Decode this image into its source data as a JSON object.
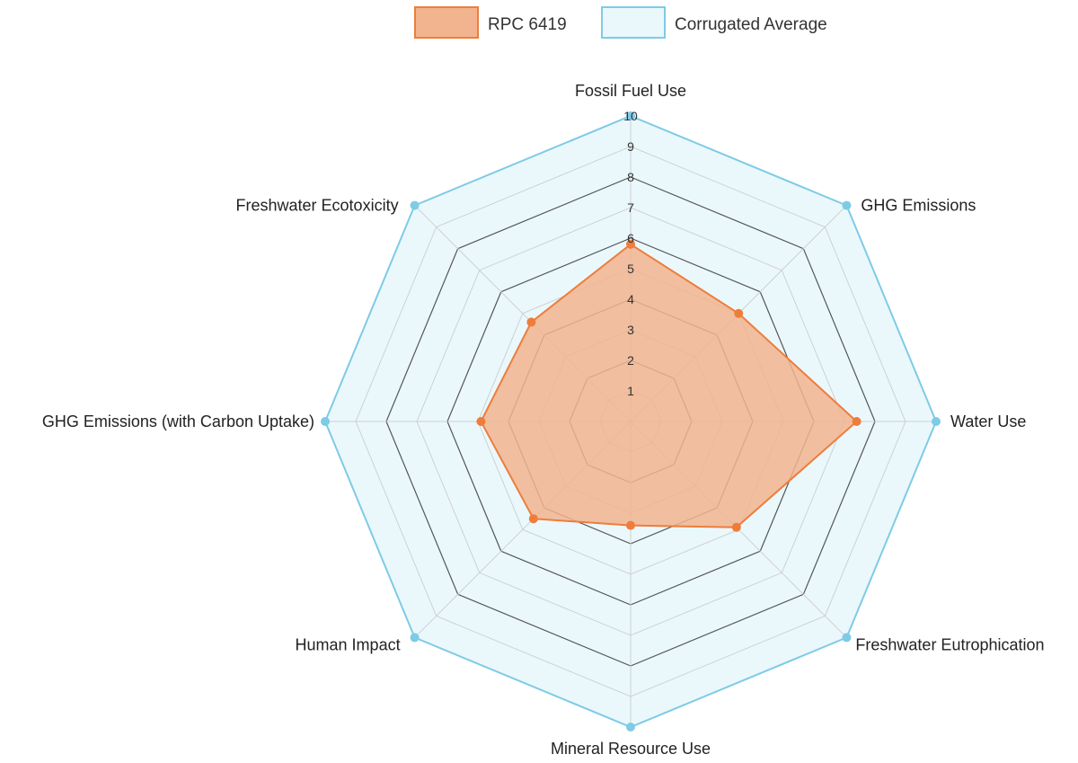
{
  "chart_data": {
    "type": "radar",
    "axes": [
      "Fossil Fuel Use",
      "GHG Emissions",
      "Water Use",
      "Freshwater Eutrophication",
      "Mineral Resource Use",
      "Human Impact",
      "GHG Emissions (with Carbon Uptake)",
      "Freshwater Ecotoxicity"
    ],
    "rlim": [
      0,
      10
    ],
    "ticks": [
      "1",
      "2",
      "3",
      "4",
      "5",
      "6",
      "7",
      "8",
      "9",
      "10"
    ],
    "series": [
      {
        "name": "RPC 6419",
        "values": [
          5.8,
          5.0,
          7.4,
          4.9,
          3.4,
          4.5,
          4.9,
          4.6
        ],
        "color": "#ee7d3b",
        "fill": "#f2b48f"
      },
      {
        "name": "Corrugated Average",
        "values": [
          10,
          10,
          10,
          10,
          10,
          10,
          10,
          10
        ],
        "color": "#7ecbe6",
        "fill": "#eaf8fc"
      }
    ],
    "grid": true,
    "legend_position": "top"
  }
}
